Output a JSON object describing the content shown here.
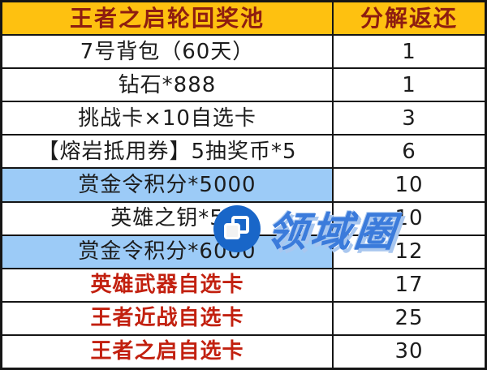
{
  "table": {
    "headers": [
      "王者之启轮回奖池",
      "分解返还"
    ],
    "rows": [
      {
        "item": "7号背包（60天）",
        "value": "1",
        "highlight": false,
        "red": false
      },
      {
        "item": "钻石*888",
        "value": "1",
        "highlight": false,
        "red": false
      },
      {
        "item": "挑战卡×10自选卡",
        "value": "3",
        "highlight": false,
        "red": false
      },
      {
        "item": "【熔岩抵用券】5抽奖币*5",
        "value": "6",
        "highlight": false,
        "red": false
      },
      {
        "item": "赏金令积分*5000",
        "value": "10",
        "highlight": true,
        "red": false
      },
      {
        "item": "英雄之钥*5",
        "value": "10",
        "highlight": false,
        "red": false
      },
      {
        "item": "赏金令积分*6000",
        "value": "12",
        "highlight": true,
        "red": false
      },
      {
        "item": "英雄武器自选卡",
        "value": "17",
        "highlight": false,
        "red": true
      },
      {
        "item": "王者近战自选卡",
        "value": "25",
        "highlight": false,
        "red": true
      },
      {
        "item": "王者之启自选卡",
        "value": "30",
        "highlight": false,
        "red": true
      }
    ]
  },
  "watermark": {
    "text": "领域圈",
    "icon": "copy-icon",
    "circle_color": "#1966C8",
    "text_color": "#3B7BDB",
    "shadow_color": "#A9C7EF"
  },
  "colors": {
    "header_bg": "#FEC110",
    "header_text": "#8E1D10",
    "highlight_bg": "#9CCBF7",
    "red_text": "#C2200F",
    "border": "#151515",
    "body_text": "#1c1c1c"
  },
  "chart_data": {
    "type": "table",
    "title": "王者之启轮回奖池",
    "columns": [
      "王者之启轮回奖池",
      "分解返还"
    ],
    "rows": [
      [
        "7号背包（60天）",
        1
      ],
      [
        "钻石*888",
        1
      ],
      [
        "挑战卡×10自选卡",
        3
      ],
      [
        "【熔岩抵用券】5抽奖币*5",
        6
      ],
      [
        "赏金令积分*5000",
        10
      ],
      [
        "英雄之钥*5",
        10
      ],
      [
        "赏金令积分*6000",
        12
      ],
      [
        "英雄武器自选卡",
        17
      ],
      [
        "王者近战自选卡",
        25
      ],
      [
        "王者之启自选卡",
        30
      ]
    ],
    "notes": {
      "highlighted_rows_1based": [
        5,
        7
      ],
      "red_emphasis_rows_1based": [
        8,
        9,
        10
      ],
      "legend_position": "none",
      "grid": "on"
    }
  }
}
